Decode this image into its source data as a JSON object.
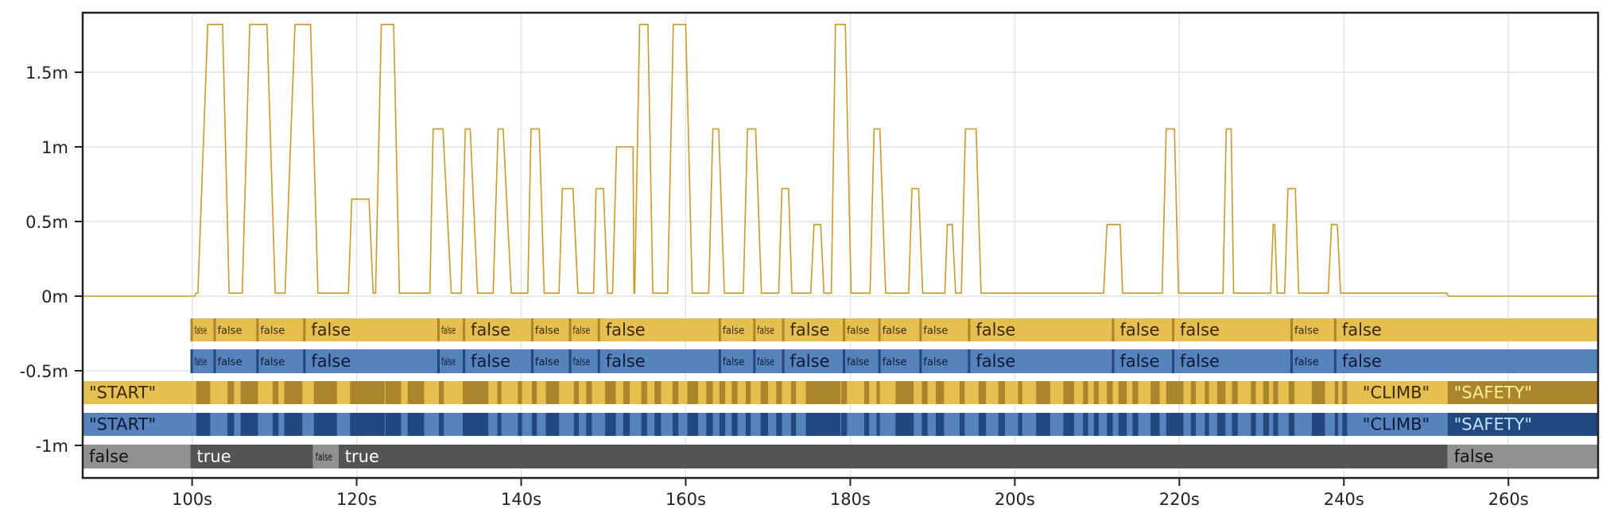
{
  "chart_data": {
    "type": "line",
    "title": "",
    "xlabel": "",
    "ylabel": "",
    "xlim": [
      86.7,
      270.9
    ],
    "ylim": [
      -1.23,
      1.9
    ],
    "grid": true,
    "x_ticks": [
      {
        "v": 100,
        "label": "100s"
      },
      {
        "v": 120,
        "label": "120s"
      },
      {
        "v": 140,
        "label": "140s"
      },
      {
        "v": 160,
        "label": "160s"
      },
      {
        "v": 180,
        "label": "180s"
      },
      {
        "v": 200,
        "label": "200s"
      },
      {
        "v": 220,
        "label": "220s"
      },
      {
        "v": 240,
        "label": "240s"
      },
      {
        "v": 260,
        "label": "260s"
      }
    ],
    "y_ticks": [
      {
        "v": 1.5,
        "label": "1.5m"
      },
      {
        "v": 1,
        "label": "1m"
      },
      {
        "v": 0.5,
        "label": "0.5m"
      },
      {
        "v": 0,
        "label": "0m"
      },
      {
        "v": -0.5,
        "label": "-0.5m"
      },
      {
        "v": -1,
        "label": "-1m"
      }
    ],
    "line_color": "#cf9a1e",
    "signal_baseline": 0.02,
    "signal_pulses_trapezoid_s_s_s_s_value": [
      [
        100.7,
        101.9,
        103.7,
        104.5,
        1.82
      ],
      [
        106.1,
        107.0,
        109.1,
        110.1,
        1.82
      ],
      [
        111.3,
        112.5,
        114.4,
        115.3,
        1.82
      ],
      [
        119.0,
        119.4,
        121.5,
        122.0,
        0.65
      ],
      [
        122.3,
        123.0,
        124.5,
        125.2,
        1.82
      ],
      [
        128.9,
        129.3,
        130.5,
        131.5,
        1.12
      ],
      [
        132.7,
        133.2,
        133.8,
        134.7,
        1.12
      ],
      [
        136.6,
        137.2,
        137.8,
        138.8,
        1.12
      ],
      [
        140.8,
        141.2,
        142.2,
        142.8,
        1.12
      ],
      [
        144.6,
        145.0,
        146.3,
        146.9,
        0.72
      ],
      [
        148.8,
        149.1,
        150.0,
        150.5,
        0.72
      ],
      [
        151.1,
        151.6,
        153.6,
        153.8,
        1.0
      ],
      [
        153.7,
        154.4,
        155.4,
        156.0,
        1.82
      ],
      [
        157.8,
        158.5,
        160.0,
        160.8,
        1.82
      ],
      [
        162.8,
        163.3,
        164.0,
        164.7,
        1.12
      ],
      [
        167.0,
        167.5,
        168.5,
        169.2,
        1.12
      ],
      [
        171.3,
        171.7,
        172.5,
        172.9,
        0.72
      ],
      [
        175.2,
        175.6,
        176.4,
        176.8,
        0.48
      ],
      [
        177.7,
        178.2,
        179.4,
        180.1,
        1.82
      ],
      [
        182.4,
        182.9,
        183.6,
        184.3,
        1.12
      ],
      [
        187.1,
        187.5,
        188.3,
        188.8,
        0.72
      ],
      [
        191.5,
        191.8,
        192.4,
        192.8,
        0.48
      ],
      [
        193.5,
        194.0,
        195.3,
        195.9,
        1.12
      ],
      [
        210.8,
        211.2,
        212.8,
        213.1,
        0.48
      ],
      [
        217.9,
        218.4,
        219.4,
        219.9,
        1.12
      ],
      [
        225.3,
        225.7,
        226.3,
        226.6,
        1.12
      ],
      [
        231.1,
        231.4,
        231.6,
        231.9,
        0.48
      ],
      [
        232.8,
        233.2,
        234.1,
        234.5,
        0.72
      ],
      [
        238.1,
        238.5,
        239.2,
        239.6,
        0.48
      ]
    ],
    "bool_rows": [
      {
        "palette": {
          "light": "#e6c04f",
          "dark": "#ab852b",
          "text": "#3a2800"
        },
        "boundaries": [
          99.8,
          102.6,
          107.8,
          113.5,
          129.8,
          132.9,
          141.2,
          145.8,
          149.3,
          164.0,
          168.2,
          171.7,
          179.1,
          183.4,
          188.4,
          194.3,
          211.8,
          219.1,
          233.5,
          238.8,
          270.9
        ],
        "labels": [
          "false",
          "false",
          "false",
          "false",
          "false",
          "false",
          "false",
          "false",
          "false",
          "false",
          "false",
          "false",
          "false",
          "false",
          "false",
          "false",
          "false",
          "false",
          "false",
          "false"
        ]
      },
      {
        "palette": {
          "light": "#5783bc",
          "dark": "#21487f",
          "text": "#0b1a33"
        },
        "boundaries": [
          99.8,
          102.6,
          107.8,
          113.5,
          129.8,
          132.9,
          141.2,
          145.8,
          149.3,
          164.0,
          168.2,
          171.7,
          179.1,
          183.4,
          188.4,
          194.3,
          211.8,
          219.1,
          233.5,
          238.8,
          270.9
        ],
        "labels": [
          "false",
          "false",
          "false",
          "false",
          "false",
          "false",
          "false",
          "false",
          "false",
          "false",
          "false",
          "false",
          "false",
          "false",
          "false",
          "false",
          "false",
          "false",
          "false",
          "false"
        ]
      }
    ],
    "state_rows": [
      {
        "palette": {
          "light": "#e6c04f",
          "dark": "#ab852b",
          "text": "#3a2800",
          "dark_text": "#fff29a"
        }
      },
      {
        "palette": {
          "light": "#5783bc",
          "dark": "#21487f",
          "text": "#0b1a33",
          "dark_text": "#bfe3ff"
        }
      }
    ],
    "state_segments": {
      "start": {
        "from": 86.7,
        "to": 100.3,
        "label": "\"START\""
      },
      "climb": {
        "from": 241.5,
        "to": 252.6,
        "label": "\"CLIMB\""
      },
      "safety": {
        "from": 252.6,
        "to": 270.9,
        "label": "\"SAFETY\""
      },
      "dark_stripes": [
        [
          100.5,
          102.2
        ],
        [
          104.3,
          105.1
        ],
        [
          105.9,
          108
        ],
        [
          109.8,
          110.5
        ],
        [
          111.2,
          113.4
        ],
        [
          114.8,
          117.6
        ],
        [
          119.2,
          123.4
        ],
        [
          123.5,
          125.4
        ],
        [
          126.2,
          128.2
        ],
        [
          130,
          130.6
        ],
        [
          132.9,
          136
        ],
        [
          137.1,
          137.6
        ],
        [
          139.6,
          140.1
        ],
        [
          141.3,
          141.9
        ],
        [
          143,
          144.6
        ],
        [
          146.4,
          147
        ],
        [
          147.9,
          148.6
        ],
        [
          150.2,
          151.5
        ],
        [
          152.4,
          153.2
        ],
        [
          154.6,
          155.3
        ],
        [
          156.2,
          157
        ],
        [
          158.4,
          159.1
        ],
        [
          160.2,
          161.5
        ],
        [
          162.5,
          163.3
        ],
        [
          164.1,
          164.8
        ],
        [
          165.6,
          166.3
        ],
        [
          167.3,
          167.9
        ],
        [
          169.1,
          170
        ],
        [
          171,
          171.7
        ],
        [
          172.8,
          173.4
        ],
        [
          174.6,
          178.8
        ],
        [
          178.9,
          179.6
        ],
        [
          181.7,
          182.3
        ],
        [
          183.2,
          183.6
        ],
        [
          185.5,
          187.7
        ],
        [
          188.7,
          189.4
        ],
        [
          190.4,
          191.4
        ],
        [
          193.3,
          193.9
        ],
        [
          195.6,
          196.5
        ],
        [
          198,
          198.8
        ],
        [
          200.4,
          200.9
        ],
        [
          202.6,
          204.3
        ],
        [
          205.9,
          207.2
        ],
        [
          208.3,
          208.9
        ],
        [
          209.6,
          210.2
        ],
        [
          211.2,
          211.9
        ],
        [
          212.6,
          213.6
        ],
        [
          214.3,
          215
        ],
        [
          216.5,
          217.6
        ],
        [
          218.4,
          220.5
        ],
        [
          221.4,
          222
        ],
        [
          223.1,
          223.6
        ],
        [
          224.6,
          225.6
        ],
        [
          226.4,
          227.1
        ],
        [
          228.7,
          229.3
        ],
        [
          230.2,
          230.9
        ],
        [
          231.4,
          232
        ],
        [
          233.3,
          234
        ],
        [
          236.1,
          237.7
        ],
        [
          238.9,
          239.3
        ],
        [
          239.8,
          240.4
        ]
      ]
    },
    "gray_row": {
      "palette": {
        "false": "#919191",
        "true": "#545454",
        "false_text": "#111111",
        "true_text": "#ffffff"
      },
      "segments": [
        {
          "from": 86.7,
          "to": 99.8,
          "value": "false"
        },
        {
          "from": 99.8,
          "to": 114.7,
          "value": "true"
        },
        {
          "from": 114.7,
          "to": 117.8,
          "value": "false"
        },
        {
          "from": 117.8,
          "to": 252.6,
          "value": "true"
        },
        {
          "from": 252.6,
          "to": 270.9,
          "value": "false"
        }
      ]
    }
  }
}
